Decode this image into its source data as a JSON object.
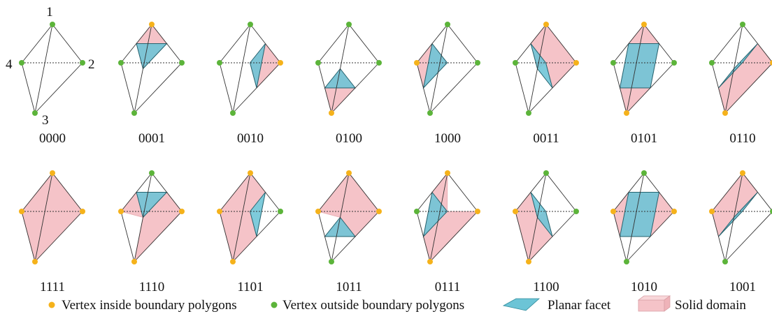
{
  "colors": {
    "vertex_inside": "#f5b21b",
    "vertex_outside": "#5cb43a",
    "planar_facet": "#6cc4d6",
    "solid_domain": "#f5c3c8",
    "edge": "#333333"
  },
  "vertex_labels": [
    "1",
    "2",
    "3",
    "4"
  ],
  "cases": [
    {
      "code": "0000"
    },
    {
      "code": "0001"
    },
    {
      "code": "0010"
    },
    {
      "code": "0100"
    },
    {
      "code": "1000"
    },
    {
      "code": "0011"
    },
    {
      "code": "0101"
    },
    {
      "code": "0110"
    },
    {
      "code": "1111"
    },
    {
      "code": "1110"
    },
    {
      "code": "1101"
    },
    {
      "code": "1011"
    },
    {
      "code": "0111"
    },
    {
      "code": "1100"
    },
    {
      "code": "1010"
    },
    {
      "code": "1001"
    }
  ],
  "legend": {
    "vertex_inside": "Vertex inside boundary polygons",
    "vertex_outside": "Vertex outside boundary polygons",
    "planar_facet": "Planar facet",
    "solid_domain": "Solid domain"
  }
}
